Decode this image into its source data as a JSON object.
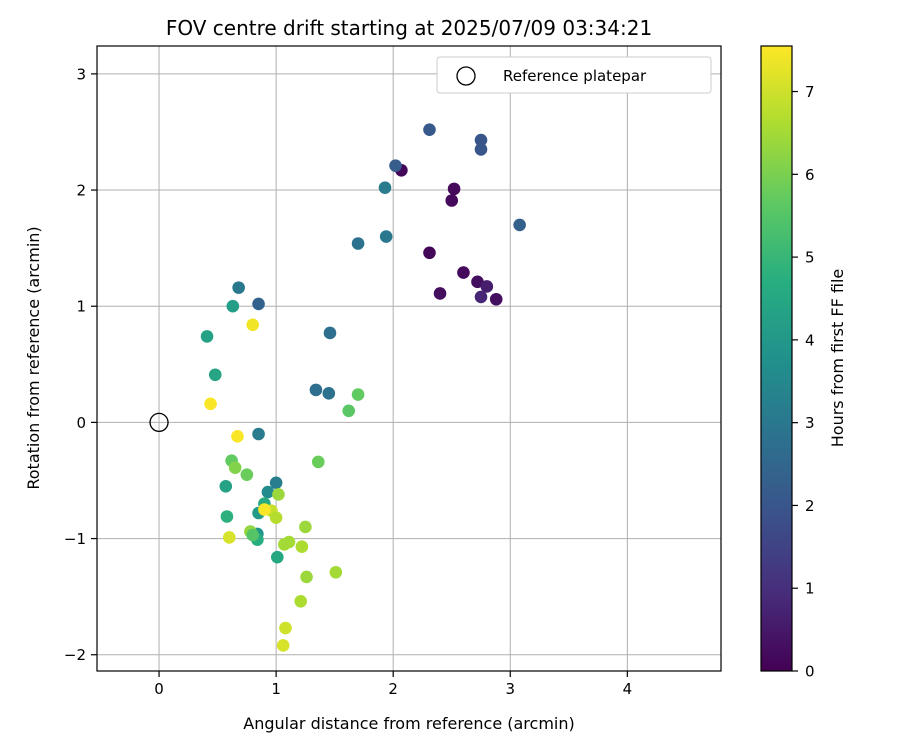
{
  "chart_data": {
    "type": "scatter",
    "title": "FOV centre drift starting at 2025/07/09 03:34:21",
    "xlabel": "Angular distance from reference (arcmin)",
    "ylabel": "Rotation from reference (arcmin)",
    "xlim": [
      -0.53,
      4.8
    ],
    "ylim": [
      -2.14,
      3.24
    ],
    "xticks": [
      0,
      1,
      2,
      3,
      4
    ],
    "yticks": [
      -2,
      -1,
      0,
      1,
      2,
      3
    ],
    "xtick_labels": [
      "0",
      "1",
      "2",
      "3",
      "4"
    ],
    "ytick_labels": [
      "−2",
      "−1",
      "0",
      "1",
      "2",
      "3"
    ],
    "grid": true,
    "legend": {
      "position": "top-right",
      "entries": [
        "Reference platepar"
      ]
    },
    "reference_point": {
      "x": 0,
      "y": 0,
      "marker": "open-circle"
    },
    "colorbar": {
      "label": "Hours from first FF file",
      "colormap": "viridis",
      "range": [
        0,
        7.55
      ],
      "ticks": [
        0,
        1,
        2,
        3,
        4,
        5,
        6,
        7
      ],
      "tick_labels": [
        "0",
        "1",
        "2",
        "3",
        "4",
        "5",
        "6",
        "7"
      ],
      "colors": [
        "#440154",
        "#472d7b",
        "#3b528b",
        "#2c728e",
        "#21918c",
        "#28ae80",
        "#5ec962",
        "#addc30",
        "#fde725"
      ]
    },
    "points": [
      {
        "x": 2.07,
        "y": 2.17,
        "c": 0.1
      },
      {
        "x": 2.52,
        "y": 2.01,
        "c": 0.2
      },
      {
        "x": 2.5,
        "y": 1.91,
        "c": 0.2
      },
      {
        "x": 2.31,
        "y": 1.46,
        "c": 0.1
      },
      {
        "x": 2.6,
        "y": 1.29,
        "c": 0.2
      },
      {
        "x": 2.72,
        "y": 1.21,
        "c": 0.3
      },
      {
        "x": 2.8,
        "y": 1.17,
        "c": 0.6
      },
      {
        "x": 2.75,
        "y": 1.08,
        "c": 0.8
      },
      {
        "x": 2.88,
        "y": 1.06,
        "c": 0.3
      },
      {
        "x": 2.4,
        "y": 1.11,
        "c": 0.3
      },
      {
        "x": 2.31,
        "y": 2.52,
        "c": 2.1
      },
      {
        "x": 2.75,
        "y": 2.43,
        "c": 2.0
      },
      {
        "x": 2.75,
        "y": 2.35,
        "c": 2.0
      },
      {
        "x": 2.02,
        "y": 2.21,
        "c": 2.2
      },
      {
        "x": 3.08,
        "y": 1.7,
        "c": 2.3
      },
      {
        "x": 1.93,
        "y": 2.02,
        "c": 3.1
      },
      {
        "x": 1.7,
        "y": 1.54,
        "c": 2.8
      },
      {
        "x": 1.94,
        "y": 1.6,
        "c": 3.0
      },
      {
        "x": 0.85,
        "y": 1.02,
        "c": 2.4
      },
      {
        "x": 0.68,
        "y": 1.16,
        "c": 3.0
      },
      {
        "x": 1.46,
        "y": 0.77,
        "c": 2.7
      },
      {
        "x": 1.34,
        "y": 0.28,
        "c": 2.7
      },
      {
        "x": 1.45,
        "y": 0.25,
        "c": 2.8
      },
      {
        "x": 0.85,
        "y": -0.1,
        "c": 3.1
      },
      {
        "x": 1.0,
        "y": -0.52,
        "c": 3.2
      },
      {
        "x": 0.93,
        "y": -0.6,
        "c": 3.6
      },
      {
        "x": 0.63,
        "y": 1.0,
        "c": 4.2
      },
      {
        "x": 0.41,
        "y": 0.74,
        "c": 4.3
      },
      {
        "x": 0.48,
        "y": 0.41,
        "c": 4.4
      },
      {
        "x": 0.57,
        "y": -0.55,
        "c": 4.3
      },
      {
        "x": 0.58,
        "y": -0.81,
        "c": 4.8
      },
      {
        "x": 0.85,
        "y": -0.78,
        "c": 4.1
      },
      {
        "x": 0.9,
        "y": -0.7,
        "c": 4.6
      },
      {
        "x": 0.84,
        "y": -0.96,
        "c": 3.9
      },
      {
        "x": 0.84,
        "y": -1.01,
        "c": 4.7
      },
      {
        "x": 1.01,
        "y": -1.16,
        "c": 4.5
      },
      {
        "x": 1.62,
        "y": 0.1,
        "c": 5.6
      },
      {
        "x": 1.7,
        "y": 0.24,
        "c": 5.7
      },
      {
        "x": 0.62,
        "y": -0.33,
        "c": 5.7
      },
      {
        "x": 0.65,
        "y": -0.39,
        "c": 6.1
      },
      {
        "x": 0.75,
        "y": -0.45,
        "c": 5.8
      },
      {
        "x": 1.36,
        "y": -0.34,
        "c": 5.8
      },
      {
        "x": 0.78,
        "y": -0.94,
        "c": 6.3
      },
      {
        "x": 0.8,
        "y": -0.97,
        "c": 5.5
      },
      {
        "x": 0.96,
        "y": -0.76,
        "c": 6.9
      },
      {
        "x": 1.0,
        "y": -0.82,
        "c": 6.7
      },
      {
        "x": 1.02,
        "y": -0.62,
        "c": 6.4
      },
      {
        "x": 1.25,
        "y": -0.9,
        "c": 6.4
      },
      {
        "x": 1.07,
        "y": -1.05,
        "c": 6.5
      },
      {
        "x": 1.11,
        "y": -1.03,
        "c": 6.5
      },
      {
        "x": 1.22,
        "y": -1.07,
        "c": 6.6
      },
      {
        "x": 1.26,
        "y": -1.33,
        "c": 6.4
      },
      {
        "x": 1.51,
        "y": -1.29,
        "c": 6.5
      },
      {
        "x": 1.21,
        "y": -1.54,
        "c": 6.6
      },
      {
        "x": 1.08,
        "y": -1.77,
        "c": 7.0
      },
      {
        "x": 1.06,
        "y": -1.92,
        "c": 7.1
      },
      {
        "x": 0.6,
        "y": -0.99,
        "c": 7.1
      },
      {
        "x": 0.8,
        "y": 0.84,
        "c": 7.4
      },
      {
        "x": 0.44,
        "y": 0.16,
        "c": 7.5
      },
      {
        "x": 0.67,
        "y": -0.12,
        "c": 7.5
      },
      {
        "x": 0.9,
        "y": -0.75,
        "c": 7.5
      }
    ]
  }
}
